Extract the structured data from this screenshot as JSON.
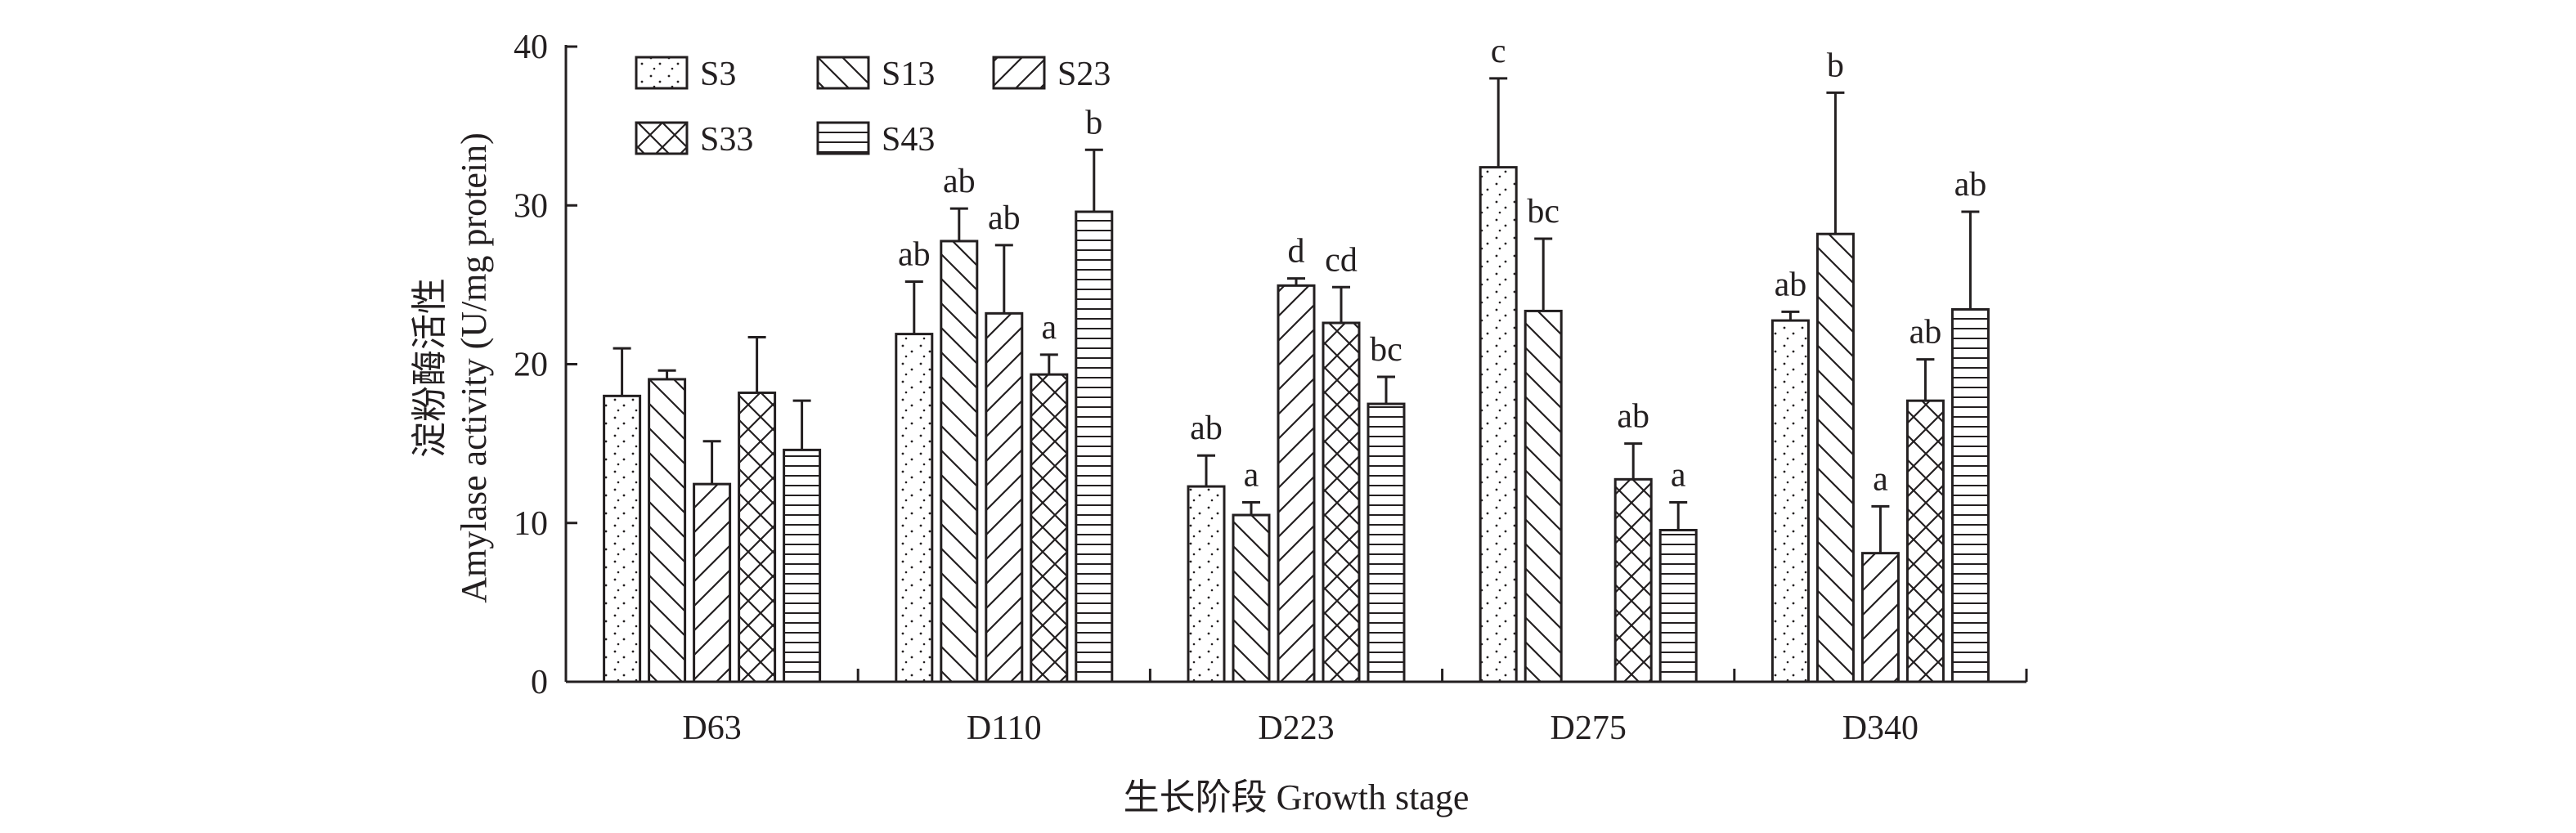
{
  "chart_data": {
    "type": "bar",
    "title": "",
    "ylabel_cn": "淀粉酶活性",
    "ylabel": "Amylase activity (U/mg protein)",
    "xlabel": "生长阶段  Growth stage",
    "ylim": [
      0,
      40
    ],
    "yticks": [
      0,
      10,
      20,
      30,
      40
    ],
    "categories": [
      "D63",
      "D110",
      "D223",
      "D275",
      "D340"
    ],
    "legend_position": "top-left",
    "series": [
      {
        "name": "S3",
        "pattern": "dots",
        "values": [
          18.0,
          21.9,
          12.3,
          32.4,
          22.75
        ],
        "errors": [
          3.0,
          3.3,
          1.95,
          5.6,
          0.55
        ],
        "letters": [
          "",
          "ab",
          "ab",
          "c",
          "ab"
        ]
      },
      {
        "name": "S13",
        "pattern": "backslash",
        "values": [
          19.05,
          27.75,
          10.5,
          23.35,
          28.2
        ],
        "errors": [
          0.55,
          2.05,
          0.8,
          4.55,
          8.9
        ],
        "letters": [
          "",
          "ab",
          "a",
          "bc",
          "b"
        ]
      },
      {
        "name": "S23",
        "pattern": "slash",
        "values": [
          12.45,
          23.2,
          24.95,
          null,
          8.1
        ],
        "errors": [
          2.7,
          4.3,
          0.45,
          null,
          2.95
        ],
        "letters": [
          "",
          "ab",
          "d",
          "",
          "a"
        ]
      },
      {
        "name": "S33",
        "pattern": "crosshatch",
        "values": [
          18.2,
          19.35,
          22.6,
          12.75,
          17.7
        ],
        "errors": [
          3.5,
          1.25,
          2.25,
          2.25,
          2.6
        ],
        "letters": [
          "",
          "a",
          "cd",
          "ab",
          "ab"
        ]
      },
      {
        "name": "S43",
        "pattern": "horizontal",
        "values": [
          14.6,
          29.6,
          17.5,
          9.55,
          23.45
        ],
        "errors": [
          3.1,
          3.9,
          1.7,
          1.75,
          6.15
        ],
        "letters": [
          "",
          "b",
          "bc",
          "a",
          "ab"
        ]
      }
    ]
  }
}
